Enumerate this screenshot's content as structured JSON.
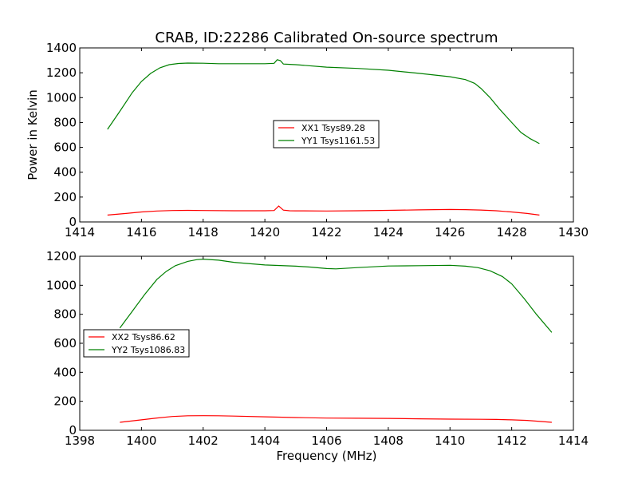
{
  "chart_data": [
    {
      "type": "line",
      "title": "CRAB, ID:22286 Calibrated On-source spectrum",
      "xlabel": "",
      "ylabel": "Power in Kelvin",
      "xlim": [
        1414,
        1430
      ],
      "ylim": [
        0,
        1400
      ],
      "xticks": [
        "1414",
        "1416",
        "1418",
        "1420",
        "1422",
        "1424",
        "1426",
        "1428",
        "1430"
      ],
      "yticks": [
        "0",
        "200",
        "400",
        "600",
        "800",
        "1000",
        "1200",
        "1400"
      ],
      "legend_position": "center",
      "series": [
        {
          "name": "XX1 Tsys89.28",
          "color": "#ff0000",
          "x": [
            1414.9,
            1415.5,
            1416.0,
            1416.5,
            1417.0,
            1417.5,
            1418.0,
            1419.0,
            1420.0,
            1420.3,
            1420.45,
            1420.6,
            1420.8,
            1421.0,
            1422.0,
            1423.0,
            1424.0,
            1425.0,
            1426.0,
            1426.5,
            1427.0,
            1427.5,
            1428.0,
            1428.5,
            1428.9
          ],
          "y": [
            55,
            68,
            80,
            88,
            92,
            93,
            92,
            90,
            90,
            92,
            128,
            95,
            90,
            89,
            88,
            90,
            93,
            97,
            100,
            99,
            96,
            90,
            80,
            68,
            55
          ]
        },
        {
          "name": "YY1 Tsys1161.53",
          "color": "#008000",
          "x": [
            1414.9,
            1415.3,
            1415.7,
            1416.0,
            1416.3,
            1416.6,
            1416.9,
            1417.2,
            1417.5,
            1418.0,
            1418.5,
            1419.0,
            1419.5,
            1420.0,
            1420.3,
            1420.4,
            1420.5,
            1420.6,
            1420.8,
            1421.0,
            1422.0,
            1423.0,
            1424.0,
            1425.0,
            1426.0,
            1426.5,
            1426.8,
            1427.0,
            1427.3,
            1427.6,
            1428.0,
            1428.3,
            1428.6,
            1428.9
          ],
          "y": [
            745,
            890,
            1040,
            1130,
            1195,
            1240,
            1265,
            1275,
            1278,
            1277,
            1273,
            1273,
            1273,
            1273,
            1276,
            1305,
            1298,
            1270,
            1268,
            1265,
            1245,
            1235,
            1220,
            1195,
            1168,
            1145,
            1115,
            1075,
            1000,
            910,
            800,
            720,
            670,
            630
          ]
        }
      ]
    },
    {
      "type": "line",
      "title": "",
      "xlabel": "Frequency (MHz)",
      "ylabel": "",
      "xlim": [
        1398,
        1414
      ],
      "ylim": [
        0,
        1200
      ],
      "xticks": [
        "1398",
        "1400",
        "1402",
        "1404",
        "1406",
        "1408",
        "1410",
        "1412",
        "1414"
      ],
      "yticks": [
        "0",
        "200",
        "400",
        "600",
        "800",
        "1000",
        "1200"
      ],
      "legend_position": "center-left",
      "series": [
        {
          "name": "XX2 Tsys86.62",
          "color": "#ff0000",
          "x": [
            1399.3,
            1400.0,
            1400.5,
            1401.0,
            1401.5,
            1402.0,
            1402.5,
            1403.0,
            1404.0,
            1405.0,
            1406.0,
            1407.0,
            1408.0,
            1409.0,
            1410.0,
            1411.0,
            1411.5,
            1412.0,
            1412.5,
            1413.3
          ],
          "y": [
            55,
            72,
            85,
            95,
            100,
            101,
            100,
            98,
            93,
            88,
            84,
            83,
            82,
            79,
            77,
            76,
            75,
            72,
            68,
            55
          ]
        },
        {
          "name": "YY2 Tsys1086.83",
          "color": "#008000",
          "x": [
            1399.3,
            1399.7,
            1400.1,
            1400.5,
            1400.8,
            1401.1,
            1401.5,
            1401.8,
            1402.0,
            1402.5,
            1403.0,
            1404.0,
            1405.0,
            1405.5,
            1406.0,
            1406.3,
            1407.0,
            1408.0,
            1409.0,
            1410.0,
            1410.5,
            1410.9,
            1411.3,
            1411.7,
            1412.0,
            1412.4,
            1412.8,
            1413.3
          ],
          "y": [
            705,
            820,
            935,
            1040,
            1095,
            1135,
            1165,
            1177,
            1180,
            1173,
            1158,
            1140,
            1132,
            1125,
            1115,
            1113,
            1122,
            1133,
            1135,
            1138,
            1132,
            1122,
            1100,
            1060,
            1010,
            910,
            800,
            675
          ]
        }
      ]
    }
  ]
}
